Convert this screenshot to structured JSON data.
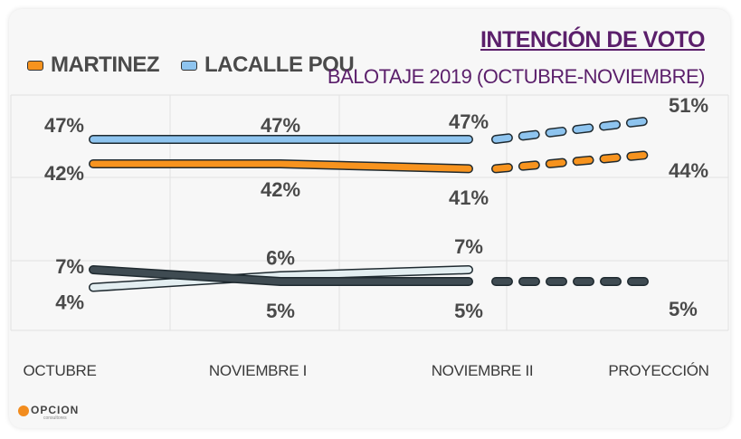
{
  "title": "INTENCIÓN DE VOTO",
  "subtitle": "BALOTAJE 2019 (OCTUBRE-NOVIEMBRE)",
  "legend": {
    "martinez": "MARTINEZ",
    "lacalle": "LACALLE POU"
  },
  "logo": {
    "name": "OPCION",
    "sub": "consultores"
  },
  "chart_data": {
    "type": "line",
    "title": "INTENCIÓN DE VOTO",
    "subtitle": "BALOTAJE 2019 (OCTUBRE-NOVIEMBRE)",
    "categories": [
      "OCTUBRE",
      "NOVIEMBRE I",
      "NOVIEMBRE II",
      "PROYECCIÓN"
    ],
    "ylim": [
      0,
      55
    ],
    "legend_position": "top-left",
    "grid": true,
    "series": [
      {
        "name": "LACALLE POU",
        "color": "#8ec4ef",
        "values": [
          47,
          47,
          47,
          51
        ],
        "labels": [
          "47%",
          "47%",
          "47%",
          "51%"
        ],
        "projection_dashed": true
      },
      {
        "name": "MARTINEZ",
        "color": "#f7931e",
        "values": [
          42,
          42,
          41,
          44
        ],
        "labels": [
          "42%",
          "42%",
          "41%",
          "44%"
        ],
        "projection_dashed": true
      },
      {
        "name": "",
        "color": "#e3eef1",
        "values": [
          4,
          6,
          7,
          null
        ],
        "labels": [
          "4%",
          "6%",
          "7%",
          ""
        ],
        "projection_dashed": false
      },
      {
        "name": "",
        "color": "#3f4b52",
        "values": [
          7,
          5,
          5,
          5
        ],
        "labels": [
          "7%",
          "5%",
          "5%",
          "5%"
        ],
        "projection_dashed": true
      }
    ]
  }
}
